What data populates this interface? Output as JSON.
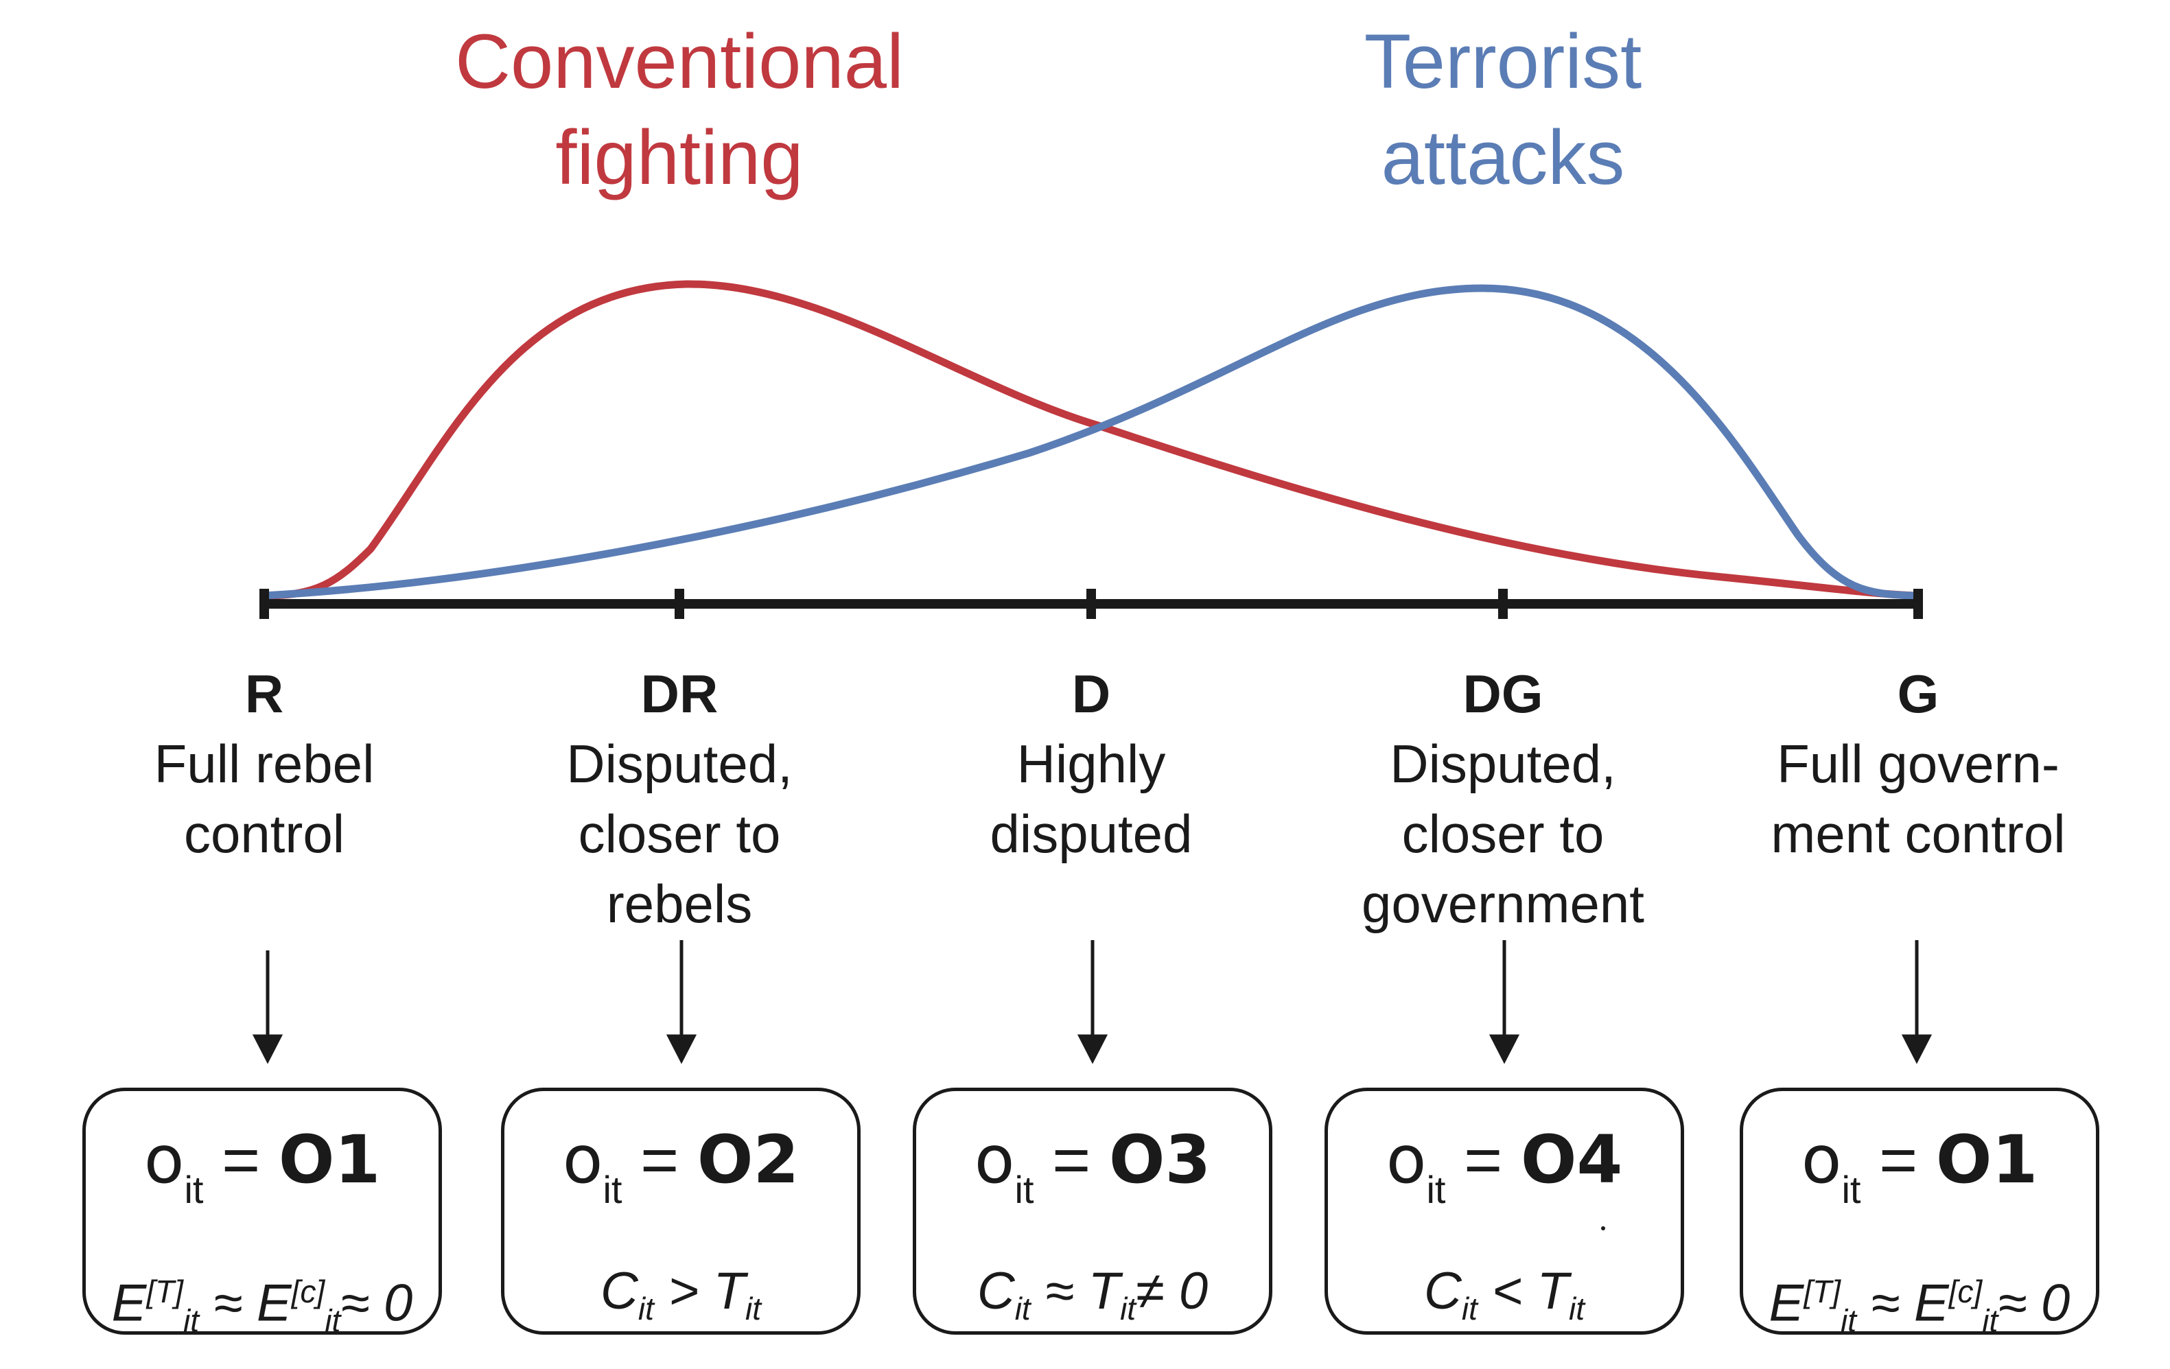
{
  "titles": {
    "conventional": "Conventional fighting",
    "terrorist": "Terrorist attacks"
  },
  "colors": {
    "conventional": "#c0393f",
    "terrorist": "#5b7db5",
    "axis": "#1a1a1a"
  },
  "zones": [
    {
      "code": "R",
      "desc": "Full rebel control"
    },
    {
      "code": "DR",
      "desc": "Disputed, closer to rebels"
    },
    {
      "code": "D",
      "desc": "Highly disputed"
    },
    {
      "code": "DG",
      "desc": "Disputed, closer to government"
    },
    {
      "code": "G",
      "desc": "Full govern- ment control"
    }
  ],
  "outcomes": [
    {
      "var": "o",
      "sub": "it",
      "eq": "=",
      "value": "O1",
      "formula": "E[T]it ≈ E[c]it ≈ 0"
    },
    {
      "var": "o",
      "sub": "it",
      "eq": "=",
      "value": "O2",
      "formula": "Cit > Tit"
    },
    {
      "var": "o",
      "sub": "it",
      "eq": "=",
      "value": "O3",
      "formula": "Cit ≈ Tit ≠ 0"
    },
    {
      "var": "o",
      "sub": "it",
      "eq": "=",
      "value": "O4",
      "formula": "Cit < Tit"
    },
    {
      "var": "o",
      "sub": "it",
      "eq": "=",
      "value": "O1",
      "formula": "E[T]it ≈ E[c]it ≈ 0"
    }
  ],
  "formula_parts": [
    [
      {
        "t": "E"
      },
      {
        "sup": "[T]"
      },
      {
        "sub": "it"
      },
      {
        "t": " ≈ E"
      },
      {
        "sup": "[c]"
      },
      {
        "sub": "it"
      },
      {
        "t": "≈ 0"
      }
    ],
    [
      {
        "t": "C"
      },
      {
        "sub": "it"
      },
      {
        "t": " > T"
      },
      {
        "sub": "it"
      }
    ],
    [
      {
        "t": "C"
      },
      {
        "sub": "it"
      },
      {
        "t": " ≈ T"
      },
      {
        "sub": "it"
      },
      {
        "t": "≠ 0"
      }
    ],
    [
      {
        "t": "C"
      },
      {
        "sub": "it"
      },
      {
        "t": " < T"
      },
      {
        "sub": "it"
      }
    ],
    [
      {
        "t": "E"
      },
      {
        "sup": "[T]"
      },
      {
        "sub": "it"
      },
      {
        "t": " ≈ E"
      },
      {
        "sup": "[c]"
      },
      {
        "sub": "it"
      },
      {
        "t": "≈ 0"
      }
    ]
  ]
}
